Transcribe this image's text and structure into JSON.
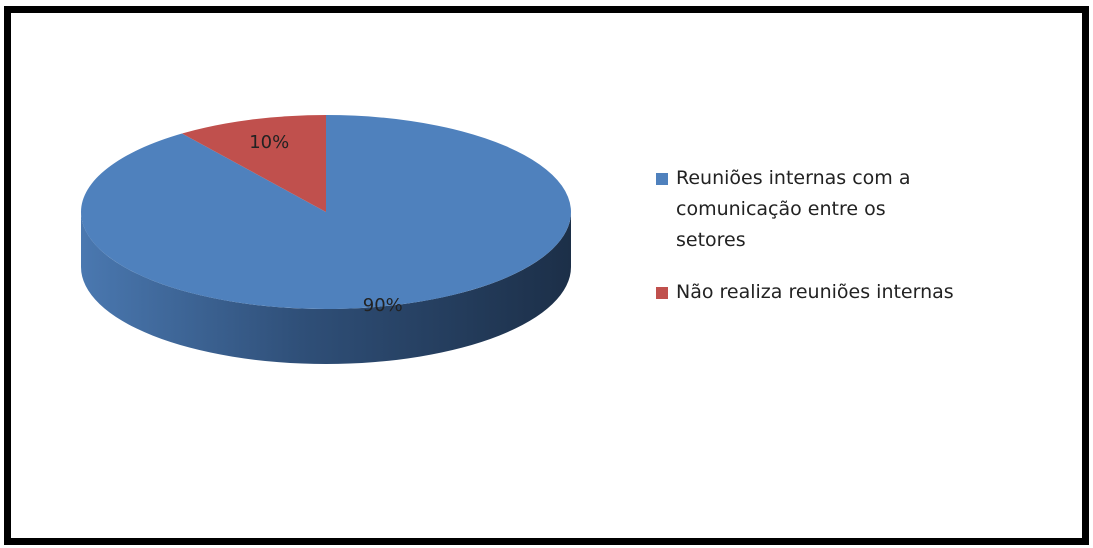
{
  "chart_data": {
    "type": "pie",
    "categories": [
      "Reuniões internas com a comunicação entre os setores",
      "Não realiza reuniões internas"
    ],
    "values": [
      90,
      10
    ],
    "value_labels": [
      "90%",
      "10%"
    ],
    "colors": [
      "#4f81bd",
      "#c0504d"
    ],
    "legend": "right"
  }
}
